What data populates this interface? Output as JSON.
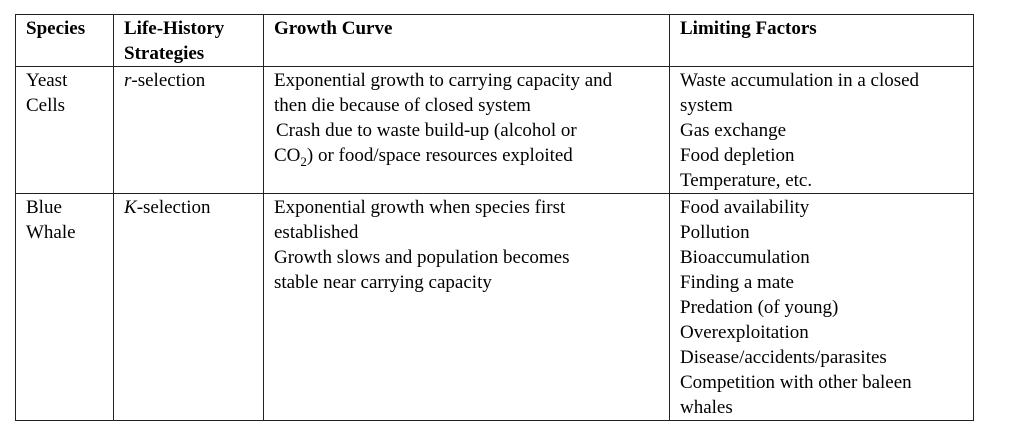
{
  "table": {
    "headers": [
      "Species",
      "Life-History Strategies",
      "Growth Curve",
      "Limiting Factors"
    ],
    "rows": [
      {
        "species": [
          "Yeast",
          "Cells"
        ],
        "strategy_letter": "r",
        "strategy_suffix": "-selection",
        "growth": [
          "Exponential growth to carrying capacity and",
          "then die because of closed system",
          "Crash due to waste build-up (alcohol or"
        ],
        "growth_co2": {
          "pre": "CO",
          "sub": "2",
          "post": ") or food/space resources exploited"
        },
        "limiting": [
          "Waste accumulation in a closed",
          "system",
          "Gas exchange",
          "Food depletion",
          "Temperature, etc."
        ]
      },
      {
        "species": [
          "Blue",
          "Whale"
        ],
        "strategy_letter": "K",
        "strategy_suffix": "-selection",
        "growth": [
          "Exponential growth when species first",
          "established",
          "Growth slows and population becomes",
          "stable near carrying capacity"
        ],
        "limiting": [
          "Food availability",
          "Pollution",
          "Bioaccumulation",
          "Finding a mate",
          "Predation (of young)",
          "Overexploitation",
          "Disease/accidents/parasites",
          "Competition with other baleen",
          "whales"
        ]
      }
    ]
  }
}
